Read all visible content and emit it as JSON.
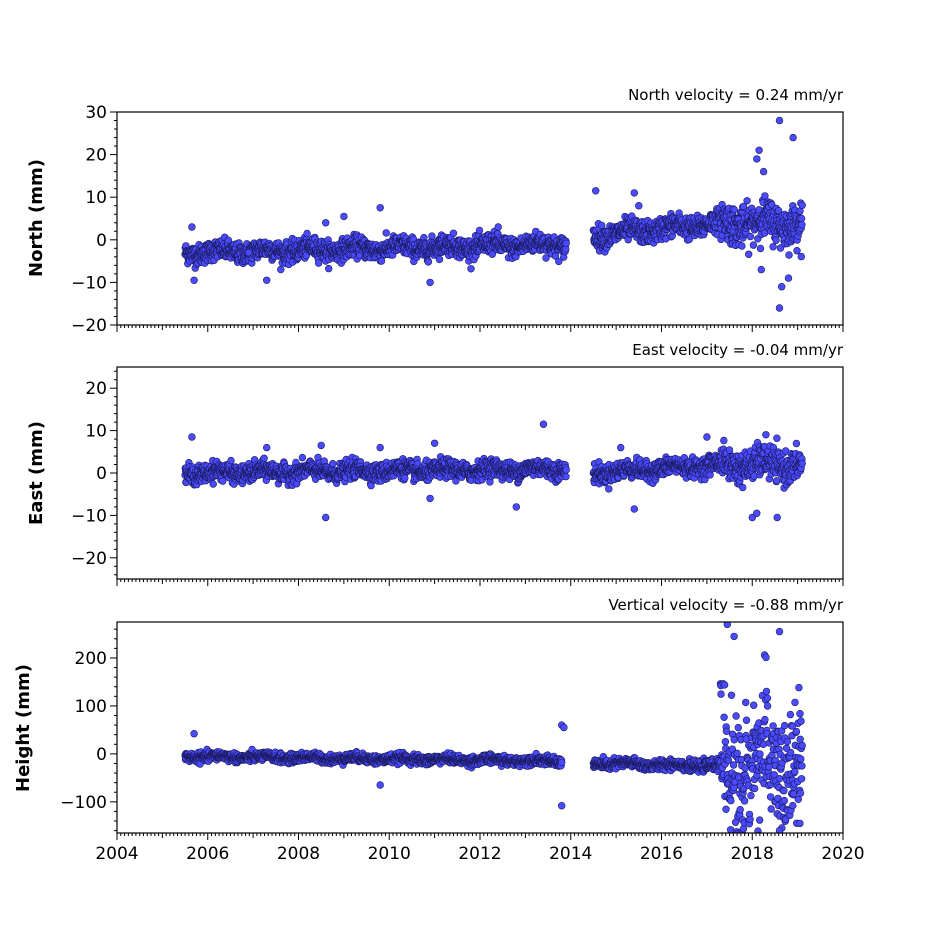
{
  "chart_data": [
    {
      "type": "scatter",
      "title": "North velocity = 0.24 mm/yr",
      "xlabel": "",
      "ylabel": "North (mm)",
      "xlim": [
        2004,
        2020
      ],
      "ylim": [
        -20,
        30
      ],
      "xticks": [
        2004,
        2006,
        2008,
        2010,
        2012,
        2014,
        2016,
        2018,
        2020
      ],
      "yticks": [
        -20,
        -10,
        0,
        10,
        20,
        30
      ],
      "ytick_labels": [
        "−20",
        "−10",
        "0",
        "10",
        "20",
        "30"
      ],
      "series_segments": [
        {
          "x_start": 2005.5,
          "x_end": 2013.9,
          "y_start": -3,
          "y_end": -1,
          "scatter": 1.8
        },
        {
          "x_start": 2014.5,
          "x_end": 2017.3,
          "y_start": 1,
          "y_end": 4,
          "scatter": 2.0
        },
        {
          "x_start": 2017.3,
          "x_end": 2019.1,
          "y_start": 4,
          "y_end": 4,
          "scatter": 3.5
        }
      ],
      "outliers": [
        [
          2005.65,
          3
        ],
        [
          2005.7,
          -9.5
        ],
        [
          2006.9,
          -3
        ],
        [
          2007.3,
          -9.5
        ],
        [
          2008.6,
          4
        ],
        [
          2009.0,
          5.5
        ],
        [
          2009.8,
          7.5
        ],
        [
          2010.9,
          -10
        ],
        [
          2012.4,
          3
        ],
        [
          2014.55,
          11.5
        ],
        [
          2015.4,
          11
        ],
        [
          2015.5,
          8
        ],
        [
          2018.1,
          19
        ],
        [
          2018.15,
          21
        ],
        [
          2018.25,
          16
        ],
        [
          2018.6,
          28
        ],
        [
          2018.9,
          24
        ],
        [
          2018.65,
          -11
        ],
        [
          2018.6,
          -16
        ],
        [
          2018.2,
          -7
        ],
        [
          2018.8,
          -9
        ]
      ]
    },
    {
      "type": "scatter",
      "title": "East velocity = -0.04 mm/yr",
      "xlabel": "",
      "ylabel": "East (mm)",
      "xlim": [
        2004,
        2020
      ],
      "ylim": [
        -25,
        25
      ],
      "xticks": [
        2004,
        2006,
        2008,
        2010,
        2012,
        2014,
        2016,
        2018,
        2020
      ],
      "yticks": [
        -20,
        -10,
        0,
        10,
        20
      ],
      "ytick_labels": [
        "−20",
        "−10",
        "0",
        "10",
        "20"
      ],
      "series_segments": [
        {
          "x_start": 2005.5,
          "x_end": 2013.9,
          "y_start": 0,
          "y_end": 1,
          "scatter": 1.6
        },
        {
          "x_start": 2014.5,
          "x_end": 2017.3,
          "y_start": 0,
          "y_end": 2,
          "scatter": 1.6
        },
        {
          "x_start": 2017.3,
          "x_end": 2019.1,
          "y_start": 2,
          "y_end": 2,
          "scatter": 2.8
        }
      ],
      "outliers": [
        [
          2005.65,
          8.5
        ],
        [
          2007.3,
          6
        ],
        [
          2008.5,
          6.5
        ],
        [
          2008.6,
          -10.5
        ],
        [
          2009.8,
          6
        ],
        [
          2011.0,
          7
        ],
        [
          2010.9,
          -6
        ],
        [
          2012.8,
          -8
        ],
        [
          2013.4,
          11.5
        ],
        [
          2015.4,
          -8.5
        ],
        [
          2015.1,
          6
        ],
        [
          2017.0,
          8.5
        ],
        [
          2018.0,
          -10.5
        ],
        [
          2018.1,
          -9.5
        ],
        [
          2018.55,
          -10.5
        ],
        [
          2018.3,
          9
        ]
      ]
    },
    {
      "type": "scatter",
      "title": "Vertical velocity = -0.88 mm/yr",
      "xlabel": "",
      "ylabel": "Height (mm)",
      "xlim": [
        2004,
        2020
      ],
      "ylim": [
        -165,
        275
      ],
      "xticks": [
        2004,
        2006,
        2008,
        2010,
        2012,
        2014,
        2016,
        2018,
        2020
      ],
      "xtick_labels": [
        "2004",
        "2006",
        "2008",
        "2010",
        "2012",
        "2014",
        "2016",
        "2018",
        "2020"
      ],
      "yticks": [
        -100,
        0,
        100,
        200
      ],
      "ytick_labels": [
        "−100",
        "0",
        "100",
        "200"
      ],
      "series_segments": [
        {
          "x_start": 2005.5,
          "x_end": 2013.8,
          "y_start": -5,
          "y_end": -15,
          "scatter": 7
        },
        {
          "x_start": 2014.5,
          "x_end": 2017.3,
          "y_start": -20,
          "y_end": -25,
          "scatter": 8
        },
        {
          "x_start": 2017.3,
          "x_end": 2019.1,
          "y_start": -30,
          "y_end": -30,
          "scatter": 110
        }
      ],
      "outliers": [
        [
          2005.7,
          42
        ],
        [
          2009.8,
          -65
        ],
        [
          2013.8,
          60
        ],
        [
          2013.85,
          55
        ],
        [
          2013.8,
          -108
        ],
        [
          2017.45,
          270
        ],
        [
          2017.6,
          245
        ],
        [
          2018.6,
          255
        ],
        [
          2018.6,
          -160
        ],
        [
          2019.05,
          -145
        ]
      ]
    }
  ],
  "colors": {
    "marker_fill": "#4a4aff",
    "marker_edge": "#1a1a5c",
    "axes": "#000000",
    "background": "#ffffff"
  }
}
